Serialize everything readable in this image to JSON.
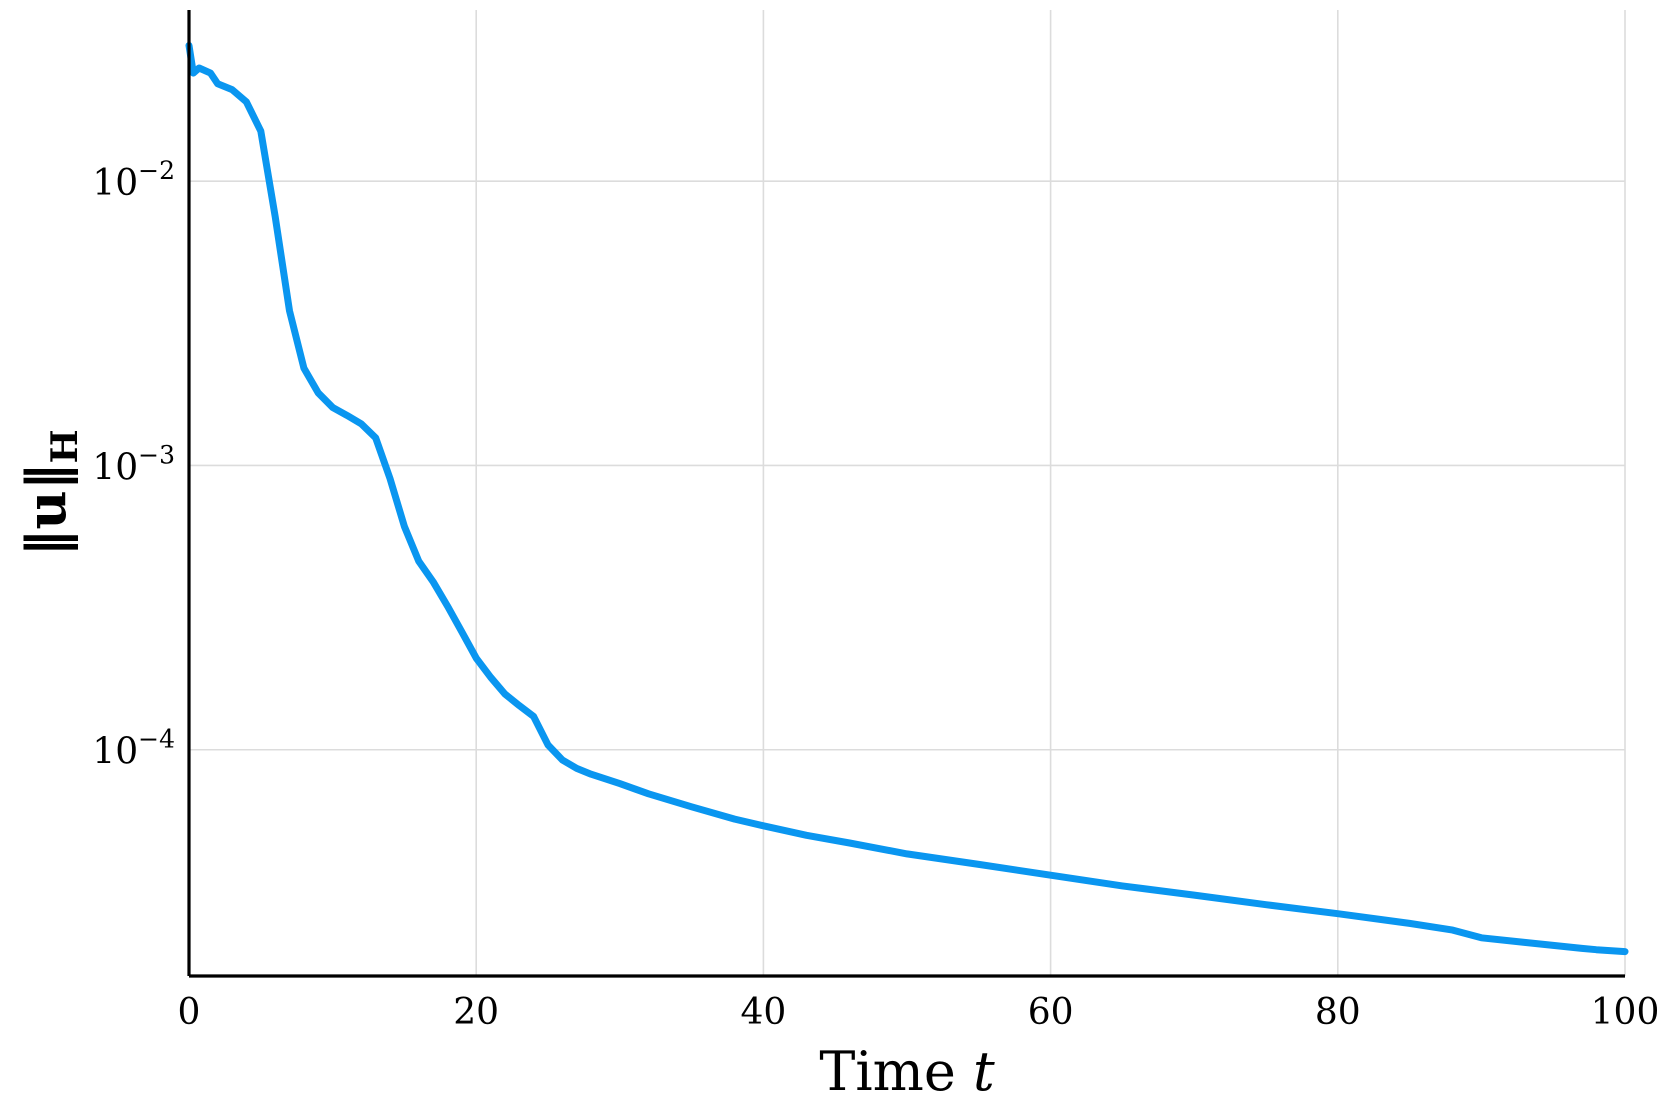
{
  "chart_data": {
    "type": "line",
    "title": "",
    "xlabel": "Time",
    "xlabel_var": "t",
    "ylabel": "‖u‖",
    "ylabel_sub": "H",
    "xlim": [
      0,
      100
    ],
    "ylim": [
      1.6e-05,
      0.04
    ],
    "yscale": "log",
    "grid": true,
    "legend": "none",
    "x_ticks": [
      0,
      20,
      40,
      60,
      80,
      100
    ],
    "x_tick_labels": [
      "0",
      "20",
      "40",
      "60",
      "80",
      "100"
    ],
    "y_ticks": [
      0.0001,
      0.001,
      0.01
    ],
    "y_tick_labels": [
      {
        "base": "10",
        "exp": "−4"
      },
      {
        "base": "10",
        "exp": "−3"
      },
      {
        "base": "10",
        "exp": "−2"
      }
    ],
    "colors": {
      "series": "#0a96f0",
      "grid": "#dcdcdc",
      "axis": "#000000"
    },
    "series": [
      {
        "color": "#0a96f0",
        "x": [
          0,
          0.3,
          0.7,
          1.5,
          2,
          3,
          4,
          5,
          6,
          7,
          8,
          9,
          10,
          11,
          12,
          13,
          14,
          15,
          16,
          17,
          18,
          19,
          20,
          21,
          22,
          23,
          24,
          25,
          26,
          27,
          28,
          30,
          32,
          35,
          38,
          40,
          43,
          46,
          50,
          55,
          60,
          65,
          70,
          75,
          80,
          85,
          88,
          90,
          93,
          95,
          97,
          98,
          100
        ],
        "y": [
          0.03,
          0.024,
          0.025,
          0.024,
          0.022,
          0.021,
          0.019,
          0.015,
          0.0075,
          0.0035,
          0.0022,
          0.0018,
          0.0016,
          0.0015,
          0.0014,
          0.00125,
          0.0009,
          0.00061,
          0.00046,
          0.00039,
          0.00032,
          0.00026,
          0.00021,
          0.00018,
          0.000157,
          0.000143,
          0.000131,
          0.000104,
          9.2e-05,
          8.6e-05,
          8.2e-05,
          7.6e-05,
          7e-05,
          6.3e-05,
          5.7e-05,
          5.4e-05,
          5e-05,
          4.7e-05,
          4.3e-05,
          3.95e-05,
          3.62e-05,
          3.32e-05,
          3.08e-05,
          2.85e-05,
          2.65e-05,
          2.45e-05,
          2.32e-05,
          2.18e-05,
          2.1e-05,
          2.05e-05,
          2e-05,
          1.98e-05,
          1.95e-05
        ]
      }
    ]
  }
}
